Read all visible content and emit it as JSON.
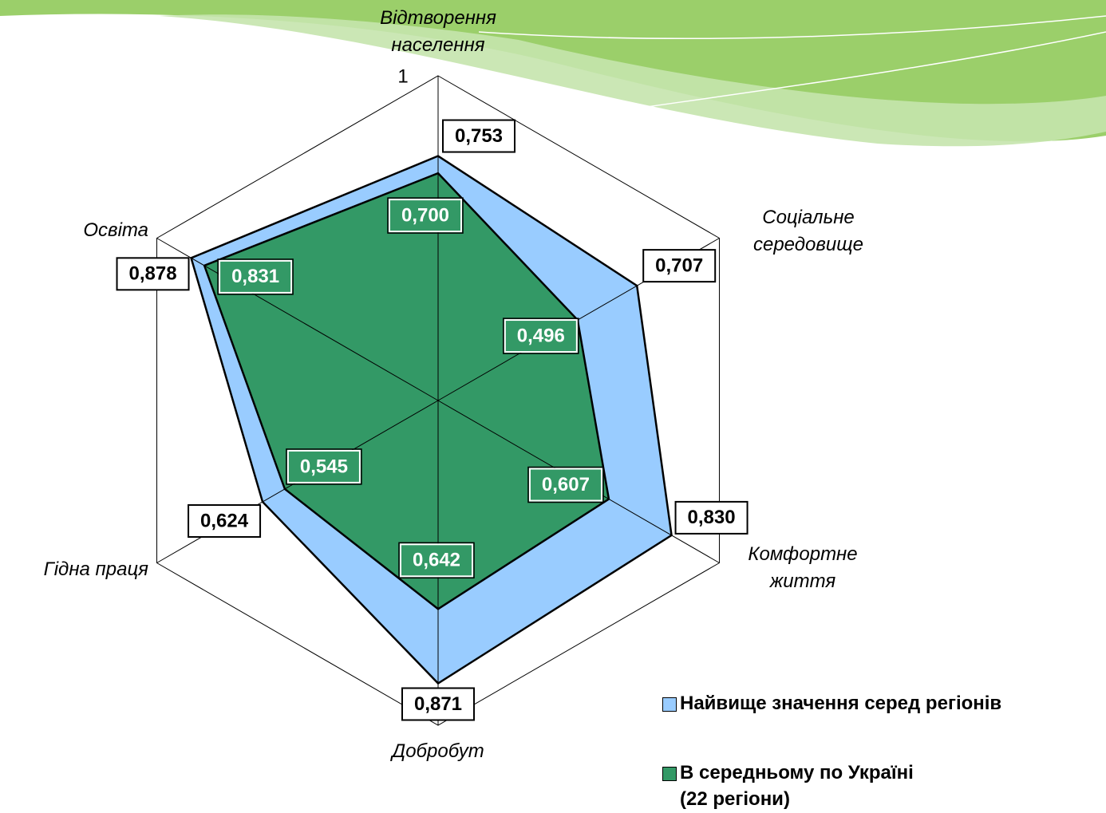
{
  "chart_data": {
    "type": "radar",
    "categories": [
      "Відтворення\nнаселення",
      "Соціальне\nсередовище",
      "Комфортне\nжиття",
      "Добробут",
      "Гідна праця",
      "Освіта"
    ],
    "rlim": [
      0,
      1
    ],
    "rticks": [
      0,
      1
    ],
    "series": [
      {
        "name": "Найвище значення серед регіонів",
        "color": "#99ccff",
        "values": [
          0.753,
          0.707,
          0.83,
          0.871,
          0.624,
          0.878
        ],
        "value_labels": [
          "0,753",
          "0,707",
          "0,830",
          "0,871",
          "0,624",
          "0,878"
        ]
      },
      {
        "name": "В середньому по Україні\n(22 регіони)",
        "color": "#339966",
        "values": [
          0.7,
          0.496,
          0.607,
          0.642,
          0.545,
          0.831
        ],
        "value_labels": [
          "0,700",
          "0,496",
          "0,607",
          "0,642",
          "0,545",
          "0,831"
        ]
      }
    ]
  }
}
